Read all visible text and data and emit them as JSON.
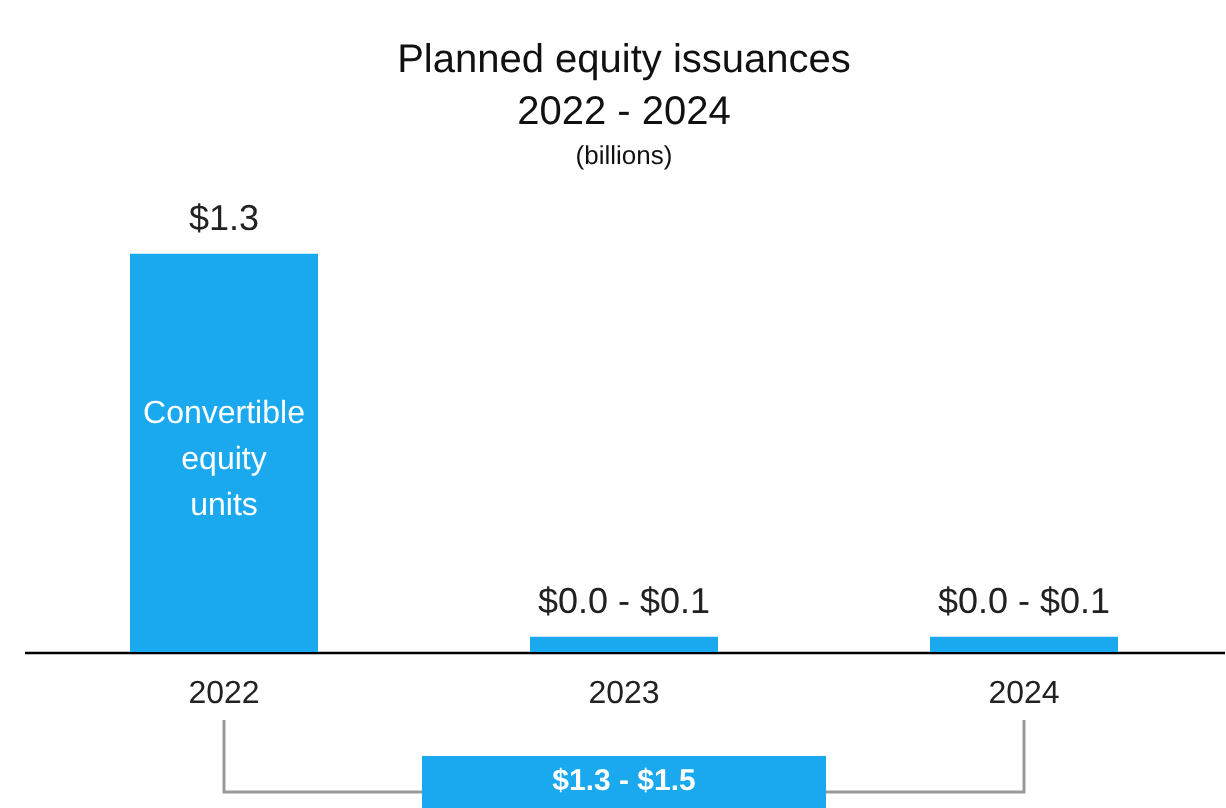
{
  "chart_data": {
    "type": "bar",
    "title": "Planned equity issuances\n2022 - 2024",
    "subtitle": "(billions)",
    "categories": [
      "2022",
      "2023",
      "2024"
    ],
    "values": [
      1.3,
      0.05,
      0.05
    ],
    "color": "#1aa9ee",
    "value_labels": [
      "$1.3",
      "$0.0 - $0.1",
      "$0.0 - $0.1"
    ],
    "annotations": [
      "Convertible\nequity\nunits",
      "$1.3 - $1.5"
    ],
    "grid": false
  }
}
